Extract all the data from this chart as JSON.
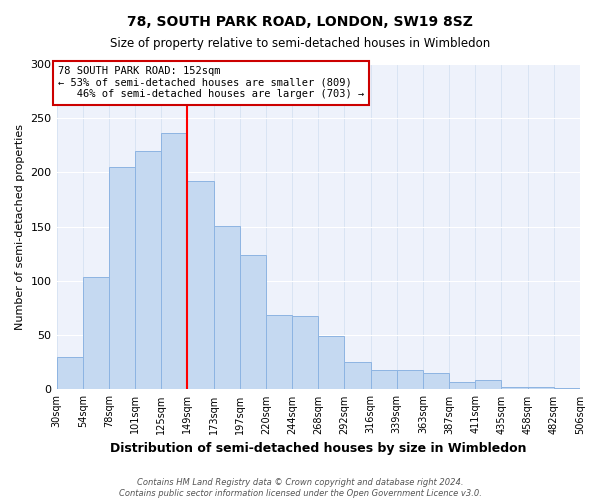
{
  "title": "78, SOUTH PARK ROAD, LONDON, SW19 8SZ",
  "subtitle": "Size of property relative to semi-detached houses in Wimbledon",
  "xlabel": "Distribution of semi-detached houses by size in Wimbledon",
  "ylabel": "Number of semi-detached properties",
  "bar_labels": [
    "30sqm",
    "54sqm",
    "78sqm",
    "101sqm",
    "125sqm",
    "149sqm",
    "173sqm",
    "197sqm",
    "220sqm",
    "244sqm",
    "268sqm",
    "292sqm",
    "316sqm",
    "339sqm",
    "363sqm",
    "387sqm",
    "411sqm",
    "435sqm",
    "458sqm",
    "482sqm",
    "506sqm"
  ],
  "bar_values": [
    30,
    104,
    205,
    220,
    236,
    192,
    151,
    124,
    69,
    68,
    49,
    25,
    18,
    18,
    15,
    7,
    9,
    2,
    2,
    1
  ],
  "bar_color": "#c5d9f1",
  "bar_edge_color": "#8db4e2",
  "property_line_x": 5,
  "property_label": "78 SOUTH PARK ROAD: 152sqm",
  "smaller_pct": 53,
  "smaller_count": 809,
  "larger_pct": 46,
  "larger_count": 703,
  "annotation_box_color": "#cc0000",
  "ylim": [
    0,
    300
  ],
  "yticks": [
    0,
    50,
    100,
    150,
    200,
    250,
    300
  ],
  "footer_line1": "Contains HM Land Registry data © Crown copyright and database right 2024.",
  "footer_line2": "Contains public sector information licensed under the Open Government Licence v3.0.",
  "bg_color": "#eef2fb"
}
